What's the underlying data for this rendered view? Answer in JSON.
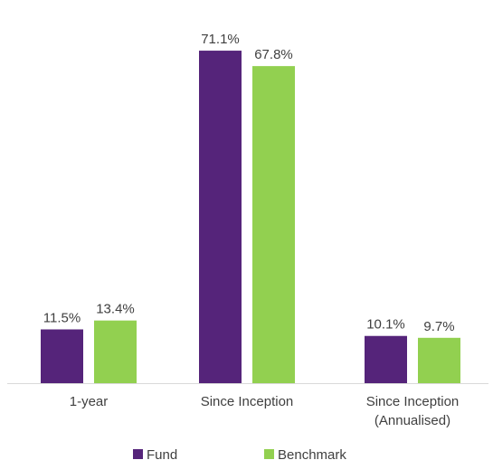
{
  "chart_data": {
    "type": "bar",
    "categories": [
      [
        "1-year"
      ],
      [
        "Since Inception"
      ],
      [
        "Since Inception",
        "(Annualised)"
      ]
    ],
    "series": [
      {
        "name": "Fund",
        "values": [
          11.5,
          71.1,
          10.1
        ],
        "labels": [
          "11.5%",
          "71.1%",
          "10.1%"
        ],
        "color": "#55247a"
      },
      {
        "name": "Benchmark",
        "values": [
          13.4,
          67.8,
          9.7
        ],
        "labels": [
          "13.4%",
          "67.8%",
          "9.7%"
        ],
        "color": "#92d050"
      }
    ],
    "ylim": [
      0,
      80
    ],
    "grid": false,
    "legend": "bottom",
    "axis_color": "#d9d9d9",
    "text_color": "#404040"
  }
}
